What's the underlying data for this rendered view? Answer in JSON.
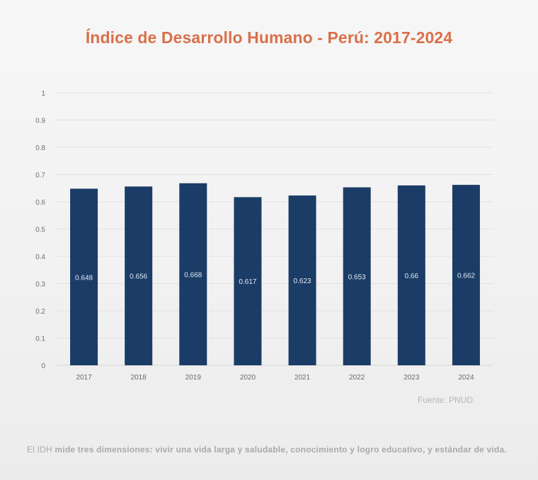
{
  "chart_data": {
    "type": "bar",
    "title": "Índice de Desarrollo Humano - Perú: 2017-2024",
    "categories": [
      "2017",
      "2018",
      "2019",
      "2020",
      "2021",
      "2022",
      "2023",
      "2024"
    ],
    "values": [
      0.648,
      0.656,
      0.668,
      0.617,
      0.623,
      0.653,
      0.66,
      0.662
    ],
    "data_labels": [
      "0.648",
      "0.656",
      "0.668",
      "0.617",
      "0.623",
      "0.653",
      "0.66",
      "0.662"
    ],
    "xlabel": "",
    "ylabel": "",
    "ylim": [
      0,
      1
    ],
    "yticks": [
      0,
      0.1,
      0.2,
      0.3,
      0.4,
      0.5,
      0.6,
      0.7,
      0.8,
      0.9,
      1
    ],
    "ytick_labels": [
      "0",
      "0.1",
      "0.2",
      "0.3",
      "0.4",
      "0.5",
      "0.6",
      "0.7",
      "0.8",
      "0.9",
      "1"
    ],
    "grid": true,
    "legend": "none",
    "bar_color": "#1b3c66",
    "title_color": "#d9704a"
  },
  "source": "Fuente: PNUD",
  "footnote": {
    "lead": "El IDH",
    "text": " mide tres dimensiones: vivir una vida larga y saludable, conocimiento y logro educativo, y estándar de vida."
  }
}
